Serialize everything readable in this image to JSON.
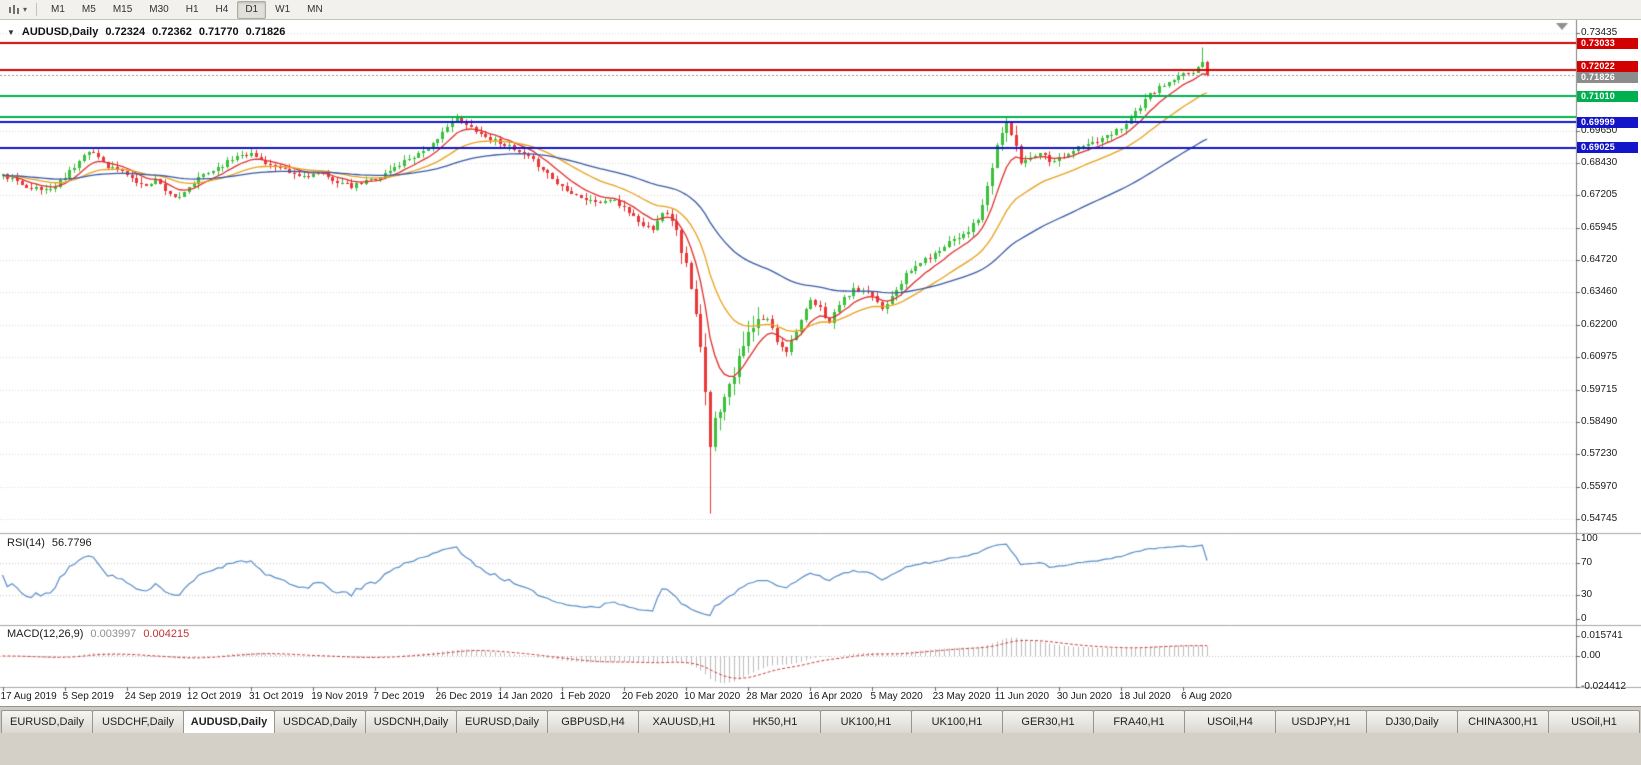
{
  "toolbar": {
    "timeframes": [
      "M1",
      "M5",
      "M15",
      "M30",
      "H1",
      "H4",
      "D1",
      "W1",
      "MN"
    ],
    "active_timeframe": "D1"
  },
  "quote": {
    "symbol": "AUDUSD,Daily",
    "open": "0.72324",
    "high": "0.72362",
    "low": "0.71770",
    "close": "0.71826"
  },
  "indicators": {
    "rsi": {
      "title": "RSI(14)",
      "value": "56.7796",
      "axis_labels": [
        "100",
        "70",
        "30",
        "0"
      ],
      "levels": [
        70,
        30
      ],
      "line_color": "#5b8fc9"
    },
    "macd": {
      "title": "MACD(12,26,9)",
      "value_main": "0.003997",
      "value_signal": "0.004215",
      "axis_labels": [
        "0.015741",
        "0.00",
        "-0.024412"
      ],
      "histogram_color": "#bdbdbd",
      "signal_color": "#d24040"
    }
  },
  "price_axis": {
    "ticks": [
      "0.73435",
      "0.69650",
      "0.68430",
      "0.67205",
      "0.65945",
      "0.64720",
      "0.63460",
      "0.62200",
      "0.60975",
      "0.59715",
      "0.58490",
      "0.57230",
      "0.55970",
      "0.54745"
    ],
    "badges": [
      {
        "price": 0.73033,
        "label": "0.73033",
        "color": "#d20000",
        "name": "resistance-line-badge-0-73033"
      },
      {
        "price": 0.72022,
        "label": "0.72022",
        "color": "#d20000",
        "name": "resistance-line-badge-0-72022"
      },
      {
        "price": 0.71826,
        "label": "0.71826",
        "color": "#8c8c8c",
        "name": "bid-price-badge"
      },
      {
        "price": 0.7101,
        "label": "0.71010",
        "color": "#00b050",
        "name": "support-line-badge-0-71010"
      },
      {
        "price": 0.69999,
        "label": "0.69999",
        "color": "#1414c8",
        "name": "support-line-badge-0-69999"
      },
      {
        "price": 0.69025,
        "label": "0.69025",
        "color": "#1414c8",
        "name": "support-line-badge-0-69025"
      }
    ]
  },
  "time_axis": {
    "labels": [
      "17 Aug 2019",
      "5 Sep 2019",
      "24 Sep 2019",
      "12 Oct 2019",
      "31 Oct 2019",
      "19 Nov 2019",
      "7 Dec 2019",
      "26 Dec 2019",
      "14 Jan 2020",
      "1 Feb 2020",
      "20 Feb 2020",
      "10 Mar 2020",
      "28 Mar 2020",
      "16 Apr 2020",
      "5 May 2020",
      "23 May 2020",
      "11 Jun 2020",
      "30 Jun 2020",
      "18 Jul 2020",
      "6 Aug 2020"
    ],
    "bars_per_label": 13
  },
  "chart_data": {
    "type": "candlestick",
    "symbol": "AUDUSD",
    "timeframe": "Daily",
    "ohlc_current": {
      "open": 0.72324,
      "high": 0.72362,
      "low": 0.7177,
      "close": 0.71826
    },
    "bars_total": 253,
    "price_range_visible": [
      0.54745,
      0.73435
    ],
    "horizontal_lines": [
      {
        "price": 0.73033,
        "color": "#d20000"
      },
      {
        "price": 0.72022,
        "color": "#d20000"
      },
      {
        "price": 0.7101,
        "color": "#00b050"
      },
      {
        "price": 0.702,
        "color": "#00b050"
      },
      {
        "price": 0.69999,
        "color": "#1414c8"
      },
      {
        "price": 0.69025,
        "color": "#1414c8"
      }
    ],
    "bid_line": {
      "price": 0.71826,
      "color": "#9a9a9a"
    },
    "moving_averages": [
      {
        "type": "ema",
        "period": 8,
        "color": "#e03030"
      },
      {
        "type": "ema",
        "period": 21,
        "color": "#e8a21e"
      },
      {
        "type": "ema",
        "period": 55,
        "color": "#3b5ba5"
      }
    ],
    "candle_colors": {
      "up_fill": "#3dbf3d",
      "down_fill": "#e93838"
    },
    "crash_low_bar": 148,
    "crash_low": 0.5495,
    "recent_high": 0.7288,
    "high_vol_range": [
      141,
      158
    ],
    "mid_vol_range": [
      204,
      212
    ],
    "noise_seed": 11,
    "price_path": [
      [
        0,
        0.6795
      ],
      [
        4,
        0.6762
      ],
      [
        8,
        0.6738
      ],
      [
        11,
        0.6752
      ],
      [
        14,
        0.6815
      ],
      [
        17,
        0.6872
      ],
      [
        19,
        0.6885
      ],
      [
        22,
        0.6833
      ],
      [
        26,
        0.6802
      ],
      [
        29,
        0.6755
      ],
      [
        32,
        0.6778
      ],
      [
        35,
        0.6726
      ],
      [
        37,
        0.6706
      ],
      [
        39,
        0.6748
      ],
      [
        42,
        0.6798
      ],
      [
        46,
        0.6838
      ],
      [
        50,
        0.6882
      ],
      [
        52,
        0.6876
      ],
      [
        55,
        0.6846
      ],
      [
        58,
        0.6818
      ],
      [
        62,
        0.6792
      ],
      [
        66,
        0.6802
      ],
      [
        70,
        0.6772
      ],
      [
        73,
        0.6752
      ],
      [
        76,
        0.6772
      ],
      [
        79,
        0.6792
      ],
      [
        82,
        0.6826
      ],
      [
        85,
        0.6862
      ],
      [
        88,
        0.6892
      ],
      [
        91,
        0.6928
      ],
      [
        93,
        0.6992
      ],
      [
        95,
        0.7012
      ],
      [
        97,
        0.6986
      ],
      [
        99,
        0.6972
      ],
      [
        101,
        0.6942
      ],
      [
        104,
        0.6926
      ],
      [
        107,
        0.6892
      ],
      [
        110,
        0.6862
      ],
      [
        113,
        0.6822
      ],
      [
        116,
        0.6764
      ],
      [
        119,
        0.6732
      ],
      [
        122,
        0.6702
      ],
      [
        125,
        0.6692
      ],
      [
        127,
        0.6702
      ],
      [
        130,
        0.6674
      ],
      [
        132,
        0.6636
      ],
      [
        134,
        0.6602
      ],
      [
        136,
        0.6596
      ],
      [
        138,
        0.6658
      ],
      [
        140,
        0.6628
      ],
      [
        142,
        0.6512
      ],
      [
        143,
        0.6452
      ],
      [
        144,
        0.6342
      ],
      [
        145,
        0.6252
      ],
      [
        146,
        0.6122
      ],
      [
        147,
        0.5982
      ],
      [
        148,
        0.5772
      ],
      [
        149,
        0.5852
      ],
      [
        150,
        0.5902
      ],
      [
        151,
        0.5962
      ],
      [
        152,
        0.6002
      ],
      [
        154,
        0.6082
      ],
      [
        156,
        0.6182
      ],
      [
        158,
        0.6232
      ],
      [
        160,
        0.6246
      ],
      [
        162,
        0.6162
      ],
      [
        164,
        0.6122
      ],
      [
        166,
        0.6202
      ],
      [
        169,
        0.6312
      ],
      [
        171,
        0.6282
      ],
      [
        173,
        0.6226
      ],
      [
        175,
        0.6302
      ],
      [
        178,
        0.6356
      ],
      [
        180,
        0.6342
      ],
      [
        182,
        0.6336
      ],
      [
        184,
        0.6282
      ],
      [
        186,
        0.6336
      ],
      [
        189,
        0.6412
      ],
      [
        192,
        0.6462
      ],
      [
        195,
        0.6492
      ],
      [
        198,
        0.6546
      ],
      [
        200,
        0.6562
      ],
      [
        202,
        0.6586
      ],
      [
        204,
        0.6622
      ],
      [
        206,
        0.6742
      ],
      [
        208,
        0.6912
      ],
      [
        210,
        0.7002
      ],
      [
        211,
        0.6952
      ],
      [
        213,
        0.6846
      ],
      [
        215,
        0.6866
      ],
      [
        217,
        0.6886
      ],
      [
        219,
        0.6856
      ],
      [
        221,
        0.6862
      ],
      [
        223,
        0.6882
      ],
      [
        225,
        0.6902
      ],
      [
        227,
        0.6916
      ],
      [
        229,
        0.6926
      ],
      [
        231,
        0.6942
      ],
      [
        234,
        0.6982
      ],
      [
        236,
        0.7022
      ],
      [
        238,
        0.7062
      ],
      [
        240,
        0.7106
      ],
      [
        242,
        0.7132
      ],
      [
        244,
        0.7152
      ],
      [
        246,
        0.7172
      ],
      [
        247,
        0.7182
      ],
      [
        249,
        0.7196
      ],
      [
        250,
        0.7216
      ],
      [
        251,
        0.72324
      ],
      [
        252,
        0.71826
      ]
    ]
  },
  "tabbar": {
    "tabs": [
      "EURUSD,Daily",
      "USDCHF,Daily",
      "AUDUSD,Daily",
      "USDCAD,Daily",
      "USDCNH,Daily",
      "EURUSD,Daily",
      "GBPUSD,H4",
      "XAUUSD,H1",
      "HK50,H1",
      "UK100,H1",
      "UK100,H1",
      "GER30,H1",
      "FRA40,H1",
      "USOil,H4",
      "USDJPY,H1",
      "DJ30,Daily",
      "CHINA300,H1",
      "USOil,H1"
    ],
    "active_index": 2
  }
}
